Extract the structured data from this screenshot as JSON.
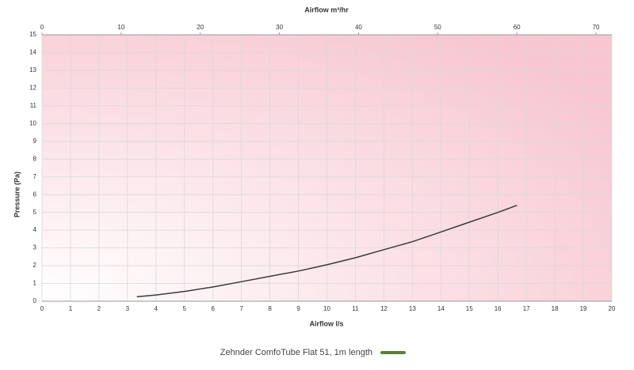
{
  "chart_data": {
    "type": "line",
    "x_label": "Airflow l/s",
    "x2_label": "Airflow m³/hr",
    "y_label": "Pressure (Pa)",
    "x": [
      3.33,
      4,
      5,
      6,
      7,
      8,
      9,
      10,
      11,
      12,
      13,
      14,
      15,
      16,
      16.67
    ],
    "series": [
      {
        "name": "Zehnder ComfoTube Flat 51, 1m length",
        "color": "#5b7f3a",
        "line_color": "#3a3a3a",
        "values": [
          0.25,
          0.35,
          0.55,
          0.8,
          1.1,
          1.4,
          1.7,
          2.05,
          2.45,
          2.9,
          3.35,
          3.9,
          4.45,
          5.0,
          5.4
        ]
      }
    ],
    "xlim": [
      0,
      20
    ],
    "xticks": [
      0,
      1,
      2,
      3,
      4,
      5,
      6,
      7,
      8,
      9,
      10,
      11,
      12,
      13,
      14,
      15,
      16,
      17,
      18,
      19,
      20
    ],
    "x2lim": [
      0,
      72
    ],
    "x2ticks": [
      0,
      10,
      20,
      30,
      40,
      50,
      60,
      70
    ],
    "ylim": [
      0,
      15
    ],
    "yticks": [
      0,
      1,
      2,
      3,
      4,
      5,
      6,
      7,
      8,
      9,
      10,
      11,
      12,
      13,
      14,
      15
    ],
    "grid": true
  }
}
